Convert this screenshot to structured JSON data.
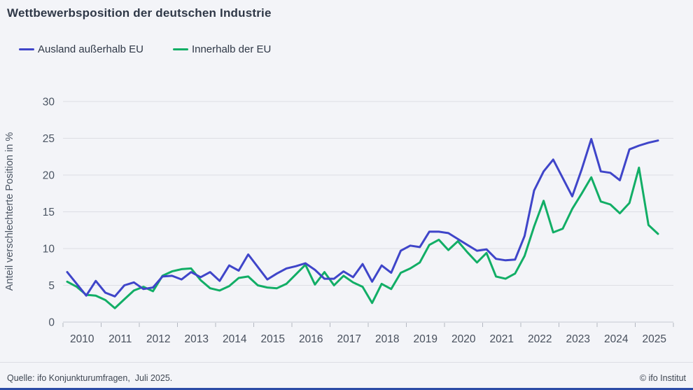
{
  "title": "Wettbewerbsposition der deutschen Industrie",
  "legend": [
    {
      "label": "Ausland außerhalb EU",
      "color": "#3f45c9"
    },
    {
      "label": "Innerhalb der EU",
      "color": "#12ae66"
    }
  ],
  "footer": {
    "source": "Quelle: ifo Konjunkturumfragen,  Juli 2025.",
    "copyright": "© ifo Institut"
  },
  "colors": {
    "background": "#f3f4f8",
    "grid": "#dddee4",
    "axis": "#c6c9d2",
    "tick": "#b3b7c1",
    "axis_text": "#4b5563",
    "bottom_bar": "#2b4ba6"
  },
  "chart_data": {
    "type": "line",
    "title": "Wettbewerbsposition der deutschen Industrie",
    "xlabel": "",
    "ylabel": "Anteil verschlechterte Position in %",
    "ylim": [
      0,
      30
    ],
    "ytick_step": 5,
    "grid": true,
    "legend_position": "top-left",
    "x_frequency": "quarterly",
    "x_start": "2010-Q1",
    "x_end": "2025-Q3",
    "x_tick_years": [
      "2010",
      "2011",
      "2012",
      "2013",
      "2014",
      "2015",
      "2016",
      "2017",
      "2018",
      "2019",
      "2020",
      "2021",
      "2022",
      "2023",
      "2024",
      "2025"
    ],
    "series": [
      {
        "name": "Ausland außerhalb EU",
        "color": "#3f45c9",
        "values": [
          6.8,
          5.2,
          3.6,
          5.6,
          4.0,
          3.5,
          5.0,
          5.4,
          4.5,
          4.7,
          6.2,
          6.3,
          5.8,
          6.8,
          6.1,
          6.8,
          5.6,
          7.7,
          7.0,
          9.2,
          7.5,
          5.8,
          6.6,
          7.3,
          7.6,
          8.0,
          7.1,
          5.9,
          5.9,
          6.9,
          6.1,
          7.9,
          5.5,
          7.7,
          6.7,
          9.7,
          10.4,
          10.2,
          12.3,
          12.3,
          12.1,
          11.3,
          10.5,
          9.7,
          9.9,
          8.6,
          8.4,
          8.5,
          11.7,
          17.9,
          20.5,
          22.1,
          19.6,
          17.1,
          20.8,
          24.9,
          20.5,
          20.3,
          19.3,
          23.5,
          24.0,
          24.4,
          24.7
        ]
      },
      {
        "name": "Innerhalb der EU",
        "color": "#12ae66",
        "values": [
          5.5,
          4.8,
          3.7,
          3.6,
          3.0,
          1.9,
          3.1,
          4.3,
          4.8,
          4.2,
          6.3,
          6.9,
          7.2,
          7.3,
          5.7,
          4.6,
          4.3,
          4.9,
          6.0,
          6.2,
          5.0,
          4.7,
          4.6,
          5.2,
          6.5,
          7.8,
          5.1,
          6.8,
          5.0,
          6.3,
          5.4,
          4.8,
          2.6,
          5.2,
          4.5,
          6.7,
          7.3,
          8.1,
          10.5,
          11.2,
          9.8,
          11.0,
          9.5,
          8.1,
          9.4,
          6.2,
          5.9,
          6.6,
          9.0,
          13.0,
          16.5,
          12.2,
          12.7,
          15.4,
          17.5,
          19.7,
          16.4,
          16.0,
          14.8,
          16.2,
          21.0,
          13.2,
          12.0
        ]
      }
    ]
  }
}
